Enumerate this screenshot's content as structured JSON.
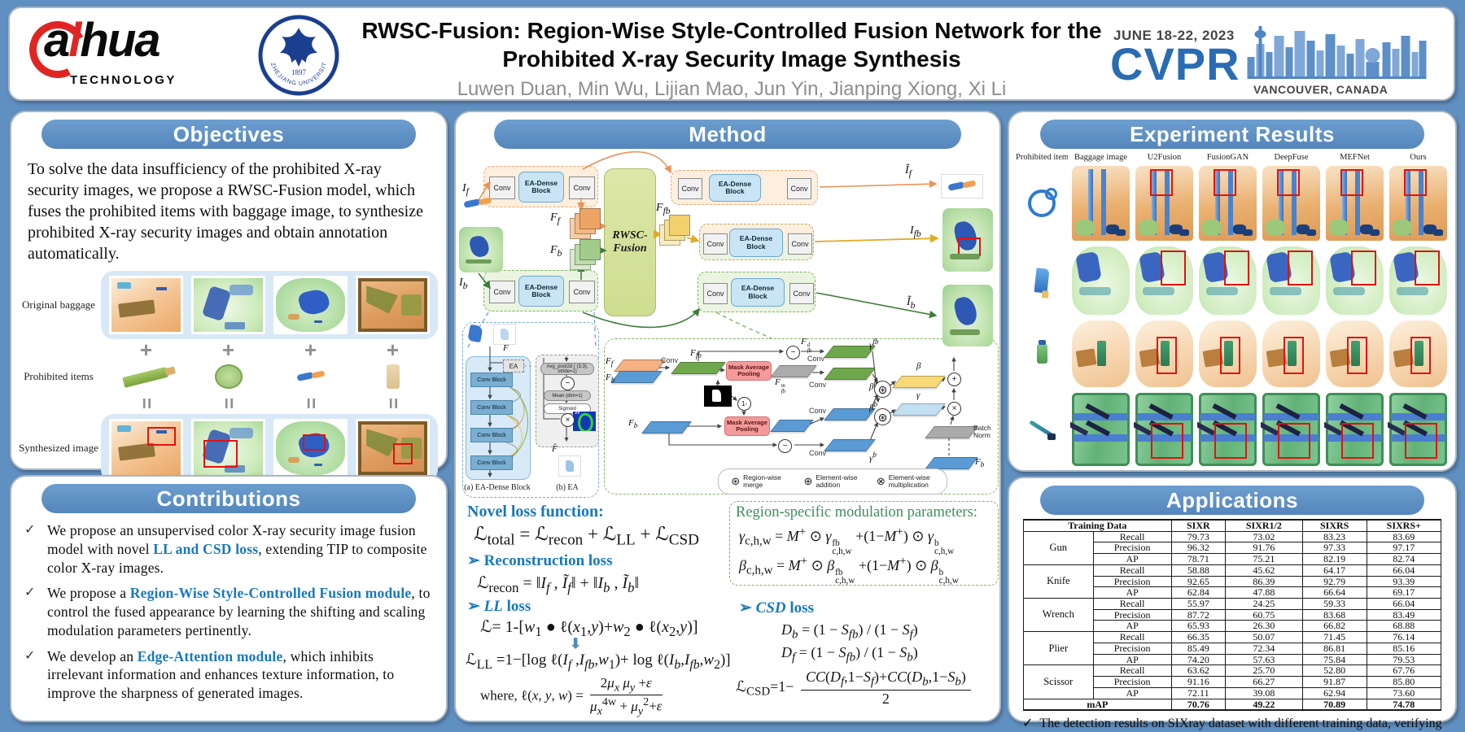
{
  "poster": {
    "title_line1": "RWSC-Fusion: Region-Wise Style-Controlled Fusion Network for the",
    "title_line2": "Prohibited X-ray Security Image Synthesis",
    "authors": "Luwen Duan, Min Wu, Lijian Mao, Jun Yin, Jianping Xiong, Xi Li",
    "accent_blue": "#5486bc",
    "background_blue": "#6090c2",
    "highlight_blue": "#1878be"
  },
  "logos": {
    "dahua": {
      "text_a": "a",
      "text_slash": "l",
      "text_rest": "hua",
      "sub": "TECHNOLOGY"
    },
    "zju": {
      "university": "ZHEJIANG UNIVERSITY",
      "year": "1897"
    },
    "cvpr": {
      "dates": "JUNE 18-22, 2023",
      "acronym": "CVPR",
      "location": "VANCOUVER, CANADA"
    }
  },
  "objectives": {
    "heading": "Objectives",
    "body": "To solve the data insufficiency of the prohibited X-ray security images, we propose a RWSC-Fusion model, which fuses the prohibited items with baggage image, to synthesize prohibited X-ray security images and obtain annotation automatically.",
    "row_labels": [
      "Original baggage",
      "Prohibited items",
      "Synthesized image"
    ],
    "plus_symbol": "+",
    "equals_symbol": "=",
    "columns": [
      {
        "baggage": "orange-suitcase",
        "item": "green-knife"
      },
      {
        "baggage": "green-backpack",
        "item": "green-disc"
      },
      {
        "baggage": "green-ovalbag",
        "item": "plier"
      },
      {
        "baggage": "brown-suitcase",
        "item": "beige-block"
      }
    ]
  },
  "contributions": {
    "heading": "Contributions",
    "bullet": "✓",
    "items": [
      {
        "segments": [
          {
            "text": "We propose an unsupervised color X-ray security image fusion model with novel ",
            "hl": false
          },
          {
            "text": "LL and CSD loss",
            "hl": true
          },
          {
            "text": ", extending TIP to composite color X-ray images.",
            "hl": false
          }
        ]
      },
      {
        "segments": [
          {
            "text": "We propose a ",
            "hl": false
          },
          {
            "text": "Region-Wise Style-Controlled Fusion module",
            "hl": true
          },
          {
            "text": ", to control the fused appearance by learning the shifting and scaling modulation parameters pertinently.",
            "hl": false
          }
        ]
      },
      {
        "segments": [
          {
            "text": "We develop an ",
            "hl": false
          },
          {
            "text": "Edge-Attention module",
            "hl": true
          },
          {
            "text": ", which inhibits irrelevant information and enhances texture information, to improve the sharpness of generated images.",
            "hl": false
          }
        ]
      }
    ]
  },
  "method": {
    "heading": "Method",
    "flow": {
      "conv": "Conv",
      "ea_dense": "EA-Dense Block",
      "fusion_line1": "RWSC-",
      "fusion_line2": "Fusion",
      "input_f": "<i>I<sub>f</sub></i>",
      "input_b": "<i>I<sub>b</sub></i>",
      "feat_f": "<i>F<sub>f</sub></i>",
      "feat_b": "<i>F<sub>b</sub></i>",
      "feat_fb": "<i>F<sub>fb</sub></i>",
      "out_f": "<i>Ĩ<sub>f</sub></i>",
      "out_fb": "<i>I<sub>fb</sub></i>",
      "out_b": "<i>Ĩ<sub>b</sub></i>"
    },
    "ea": {
      "feature_in": "<i>F</i>",
      "ea_label": "EA",
      "conv_block": "Conv Block",
      "avg_pool": "Avg_pool2d ( (3,3), stride=1)",
      "mean": "Mean (dim=1)",
      "sigmoid": "Sigmoid",
      "weight": "W",
      "feature_out": "<i>F̂</i>",
      "caption_a": "(a) EA-Dense Block",
      "caption_b": "(b) EA"
    },
    "rwsc": {
      "mask_avg_pool": "Mask Average Pooling",
      "conv": "Conv",
      "f_f": "<i>F<sub>f</sub></i>",
      "f_b": "<i>F<sub>b</sub></i>",
      "f_fb": "<i>F<sub>fb</sub></i>",
      "f_fb_d": "<i>F</i><span class=\"ss\"><sup>d</sup><sub>fb</sub></span>",
      "f_fb_m": "<i>F</i><span class=\"ss\"><sup>m</sup><sub>fb</sub></span>",
      "gamma_fb": "<i>γ</i><sup>fb</sup>",
      "beta_fb": "<i>β</i><sup>fb</sup>",
      "beta_b": "<i>β</i><sup>b</sup>",
      "gamma_b": "<i>γ</i><sup>b</sup>",
      "beta": "<i>β</i>",
      "gamma": "<i>γ</i>",
      "one_minus": "1-",
      "batch_norm": "Batch Norm",
      "legend": [
        {
          "symbol": "⊛",
          "label": "Region-wise merge"
        },
        {
          "symbol": "⊕",
          "label": "Element-wise addition"
        },
        {
          "symbol": "⊗",
          "label": "Element-wise multiplication"
        }
      ]
    },
    "losses": {
      "novel_heading": "Novel loss function:",
      "total": "ℒ<sub>total</sub> = ℒ<sub>recon</sub> + ℒ<sub>LL</sub> + ℒ<sub>CSD</sub>",
      "arrow_bullet": "➢",
      "recon_heading": "Reconstruction loss",
      "recon": "ℒ<sub>recon</sub> = ‖<i>I<sub>f</sub></i> , <i>Ĩ<sub>f</sub></i>‖ + ‖<i>I<sub>b</sub></i> , <i>Ĩ<sub>b</sub></i>‖",
      "ll_heading": "<i>LL</i> loss",
      "ll_general": "ℒ= 1-[<i>w</i><sub>1</sub> ● ℓ(<i>x</i><sub>1</sub>,<i>y</i>)+<i>w</i><sub>2</sub> ● ℓ(<i>x</i><sub>2</sub>,<i>y</i>)]",
      "ll": "ℒ<sub>LL</sub> =1−[log ℓ(<i>I<sub>f</sub></i> ,<i>I<sub>fb</sub></i>,<i>w</i><sub>1</sub>)+ log ℓ(<i>I<sub>b</sub></i>,<i>I<sub>fb</sub></i>,<i>w</i><sub>2</sub>)]",
      "ll_where": "where, ℓ(<i>x</i>, <i>y</i>, <i>w</i>) = <span class=\"frac\"><span class=\"ft\">2<i>μ<sub>x</sub></i> <i>μ<sub>y</sub></i> +<i>ε</i></span><span class=\"fb2\"><i>μ<sub>x</sub></i><sup>4w</sup> + <i>μ<sub>y</sub></i><sup>2</sup>+<i>ε</i></span></span>",
      "region_heading": "Region-specific modulation parameters:",
      "gamma_eq": "<i>γ</i><sub>c,h,w</sub> = <i>M</i><sup>+</sup> ⊙ <i>γ</i><span class=\"ss\"><sup>fb</sup><sub>c,h,w</sub></span> +(1−<i>M</i><sup>+</sup>) ⊙ <i>γ</i><span class=\"ss\"><sup>b</sup><sub>c,h,w</sub></span>",
      "beta_eq": "<i>β</i><sub>c,h,w</sub> = <i>M</i><sup>+</sup> ⊙ <i>β</i><span class=\"ss\"><sup>fb</sup><sub>c,h,w</sub></span> +(1−<i>M</i><sup>+</sup>) ⊙ <i>β</i><span class=\"ss\"><sup>b</sup><sub>c,h,w</sub></span>",
      "csd_heading": "<i>CSD</i> loss",
      "csd_db": "<i>D<sub>b</sub></i> = (1 − <i>S<sub>fb</sub></i>) / (1 − <i>S<sub>f</sub></i>)",
      "csd_df": "<i>D<sub>f</sub></i> = (1 − <i>S<sub>fb</sub></i>) / (1 − <i>S<sub>b</sub></i>)",
      "csd": "ℒ<sub>CSD</sub>=1− <span class=\"frac\"><span class=\"ft\"><i>CC</i>(<i>D<sub>f</sub></i>,1−<i>S<sub>f</sub></i>)+<i>CC</i>(<i>D<sub>b</sub></i>,1−<i>S<sub>b</sub></i>)</span><span class=\"fb2\">2</span></span>"
    }
  },
  "experiments": {
    "heading": "Experiment Results",
    "columns": [
      "Prohibited item",
      "Baggage image",
      "U2Fusion",
      "FusionGAN",
      "DeepFuse",
      "MEFNet",
      "Ours"
    ],
    "rows": [
      {
        "item_icon": "ring-item-icon",
        "palette": "orange-case"
      },
      {
        "item_icon": "cleaver-item-icon",
        "palette": "green-bag"
      },
      {
        "item_icon": "canister-item-icon",
        "palette": "peach-bag"
      },
      {
        "item_icon": "hammer-item-icon",
        "palette": "green-case"
      }
    ]
  },
  "applications": {
    "heading": "Applications",
    "table": {
      "header": [
        "Training Data",
        "SIXR",
        "SIXR1/2",
        "SIXRS",
        "SIXRS+"
      ],
      "groups": [
        {
          "category": "Gun",
          "metrics": [
            {
              "name": "Recall",
              "values": [
                "79.73",
                "73.02",
                "83.23",
                "83.69"
              ]
            },
            {
              "name": "Precision",
              "values": [
                "96.32",
                "91.76",
                "97.33",
                "97.17"
              ]
            },
            {
              "name": "AP",
              "values": [
                "78.71",
                "75.21",
                "82.19",
                "82.74"
              ]
            }
          ]
        },
        {
          "category": "Knife",
          "metrics": [
            {
              "name": "Recall",
              "values": [
                "58.88",
                "45.62",
                "64.17",
                "66.04"
              ]
            },
            {
              "name": "Precision",
              "values": [
                "92.65",
                "86.39",
                "92.79",
                "93.39"
              ]
            },
            {
              "name": "AP",
              "values": [
                "62.84",
                "47.88",
                "66.64",
                "69.17"
              ]
            }
          ]
        },
        {
          "category": "Wrench",
          "metrics": [
            {
              "name": "Recall",
              "values": [
                "55.97",
                "24.25",
                "59.33",
                "66.04"
              ]
            },
            {
              "name": "Precision",
              "values": [
                "87.72",
                "60.75",
                "83.68",
                "83.49"
              ]
            },
            {
              "name": "AP",
              "values": [
                "65.93",
                "26.30",
                "66.82",
                "68.88"
              ]
            }
          ]
        },
        {
          "category": "Plier",
          "metrics": [
            {
              "name": "Recall",
              "values": [
                "66.35",
                "50.07",
                "71.45",
                "76.14"
              ]
            },
            {
              "name": "Precision",
              "values": [
                "85.49",
                "72.34",
                "86.81",
                "85.16"
              ]
            },
            {
              "name": "AP",
              "values": [
                "74.20",
                "57.63",
                "75.84",
                "79.53"
              ]
            }
          ]
        },
        {
          "category": "Scissor",
          "metrics": [
            {
              "name": "Recall",
              "values": [
                "63.62",
                "25.70",
                "52.80",
                "67.76"
              ]
            },
            {
              "name": "Precision",
              "values": [
                "91.16",
                "66.27",
                "91.87",
                "85.80"
              ]
            },
            {
              "name": "AP",
              "values": [
                "72.11",
                "39.08",
                "62.94",
                "73.60"
              ]
            }
          ]
        }
      ],
      "map_row": {
        "label": "mAP",
        "values": [
          "70.76",
          "49.22",
          "70.89",
          "74.78"
        ]
      }
    },
    "note_bullet": "✓",
    "note": "The detection results on SIXray dataset with different training data, verifying the reliability of our synthetic image in promoting tasks ."
  }
}
